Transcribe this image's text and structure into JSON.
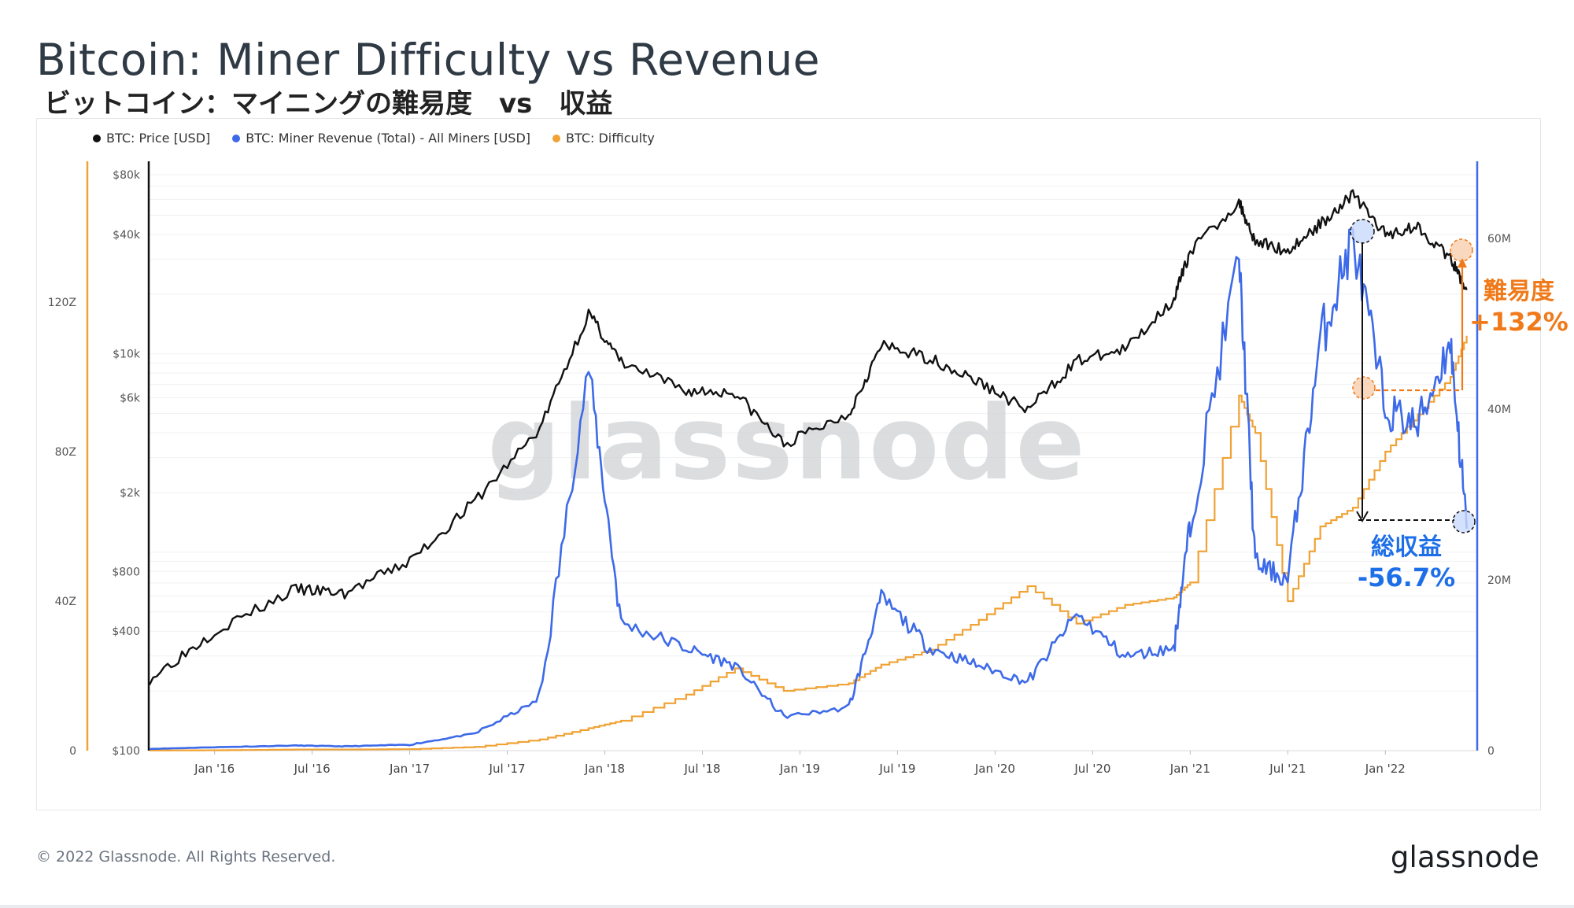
{
  "title": "Bitcoin: Miner Difficulty vs Revenue",
  "subtitle": "ビットコイン：マイニングの難易度　vs　収益",
  "legend": [
    {
      "label": "BTC: Price [USD]",
      "color": "#111111"
    },
    {
      "label": "BTC: Miner Revenue (Total) - All Miners [USD]",
      "color": "#3d6ae8"
    },
    {
      "label": "BTC: Difficulty",
      "color": "#f0a234"
    }
  ],
  "watermark": "glassnode",
  "annotations": {
    "difficulty_label": "難易度",
    "difficulty_change": "+132%",
    "revenue_label": "総収益",
    "revenue_change": "-56.7%"
  },
  "footer": {
    "copyright": "© 2022 Glassnode. All Rights Reserved.",
    "brand": "glassnode"
  },
  "colors": {
    "price": "#111111",
    "revenue": "#3d6ae8",
    "difficulty": "#f0a234",
    "annotation_orange": "#f07a1a",
    "annotation_blue": "#1d6fe8"
  },
  "chart_data": {
    "type": "line",
    "title": "Bitcoin: Miner Difficulty vs Revenue",
    "x": [
      "2015-09",
      "2016-01",
      "2016-06",
      "2016-09",
      "2017-01",
      "2017-05",
      "2017-09",
      "2017-12",
      "2018-02",
      "2018-06",
      "2018-09",
      "2018-12",
      "2019-04",
      "2019-06",
      "2019-09",
      "2019-12",
      "2020-03",
      "2020-06",
      "2020-09",
      "2020-12",
      "2021-01",
      "2021-04",
      "2021-05",
      "2021-07",
      "2021-09",
      "2021-11",
      "2022-01",
      "2022-03",
      "2022-05",
      "2022-06"
    ],
    "x_ticks": [
      "Jan '16",
      "Jul '16",
      "Jan '17",
      "Jul '17",
      "Jan '18",
      "Jul '18",
      "Jan '19",
      "Jul '19",
      "Jan '20",
      "Jul '20",
      "Jan '21",
      "Jul '21",
      "Jan '22"
    ],
    "series": [
      {
        "name": "BTC: Price [USD]",
        "axis": "left-price",
        "scale": "log",
        "values": [
          230,
          400,
          650,
          620,
          900,
          1800,
          4200,
          16000,
          9000,
          6500,
          6400,
          3500,
          5000,
          11000,
          9500,
          7200,
          5200,
          9200,
          10500,
          19000,
          33000,
          58000,
          37000,
          33000,
          45000,
          64000,
          40000,
          44000,
          30000,
          21000
        ]
      },
      {
        "name": "BTC: Miner Revenue (Total) - All Miners [USD]",
        "axis": "right-revenue",
        "values": [
          0.2,
          0.4,
          0.6,
          0.5,
          0.7,
          2,
          6,
          45,
          15,
          12,
          10,
          4,
          5,
          18,
          12,
          10,
          8,
          16,
          11,
          12,
          27,
          58,
          22,
          20,
          48,
          60,
          40,
          38,
          48,
          26
        ]
      },
      {
        "name": "BTC: Difficulty",
        "axis": "left-difficulty",
        "values": [
          0.05,
          0.1,
          0.3,
          0.3,
          0.4,
          1,
          3,
          6,
          8,
          15,
          22,
          16,
          18,
          23,
          27,
          35,
          44,
          34,
          39,
          41,
          45,
          95,
          85,
          40,
          60,
          65,
          80,
          90,
          100,
          111
        ]
      }
    ],
    "y_price_ticks": [
      "$100",
      "$400",
      "$800",
      "$2k",
      "$6k",
      "$10k",
      "$40k",
      "$80k"
    ],
    "y_difficulty_ticks": [
      "0",
      "40Z",
      "80Z",
      "120Z"
    ],
    "y_revenue_ticks": [
      "0",
      "20M",
      "40M",
      "60M"
    ],
    "ylim_price": [
      100,
      80000
    ],
    "ylim_difficulty": [
      0,
      160
    ],
    "ylim_revenue": [
      0,
      70
    ]
  }
}
